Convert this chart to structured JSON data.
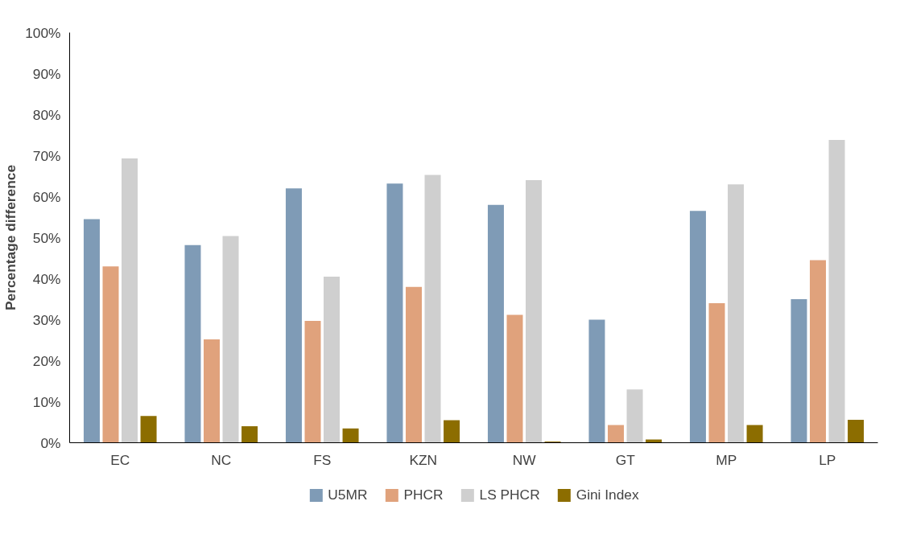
{
  "chart_data": {
    "type": "bar",
    "ylabel": "Percentage difference",
    "categories": [
      "EC",
      "NC",
      "FS",
      "KZN",
      "NW",
      "GT",
      "MP",
      "LP"
    ],
    "series": [
      {
        "name": "U5MR",
        "color": "#7f9bb6",
        "values": [
          54.5,
          48.2,
          62,
          63.2,
          58,
          30,
          56.5,
          35
        ]
      },
      {
        "name": "PHCR",
        "color": "#e0a27c",
        "values": [
          43,
          25.2,
          29.7,
          38,
          31.2,
          4.3,
          34,
          44.5
        ]
      },
      {
        "name": "LS PHCR",
        "color": "#cfcfcf",
        "values": [
          69.3,
          50.4,
          40.5,
          65.3,
          64,
          13,
          63,
          73.8
        ]
      },
      {
        "name": "Gini Index",
        "color": "#8c6d00",
        "values": [
          6.5,
          4,
          3.5,
          5.5,
          0.3,
          0.8,
          4.3,
          5.6
        ]
      }
    ],
    "ylim": [
      0,
      100
    ],
    "yticks": [
      {
        "value": 0,
        "label": "0%"
      },
      {
        "value": 10,
        "label": "10%"
      },
      {
        "value": 20,
        "label": "20%"
      },
      {
        "value": 30,
        "label": "30%"
      },
      {
        "value": 40,
        "label": "40%"
      },
      {
        "value": 50,
        "label": "50%"
      },
      {
        "value": 60,
        "label": "60%"
      },
      {
        "value": 70,
        "label": "70%"
      },
      {
        "value": 80,
        "label": "80%"
      },
      {
        "value": 90,
        "label": "90%"
      },
      {
        "value": 100,
        "label": "100%"
      }
    ],
    "grid": false,
    "legend": "bottom"
  }
}
